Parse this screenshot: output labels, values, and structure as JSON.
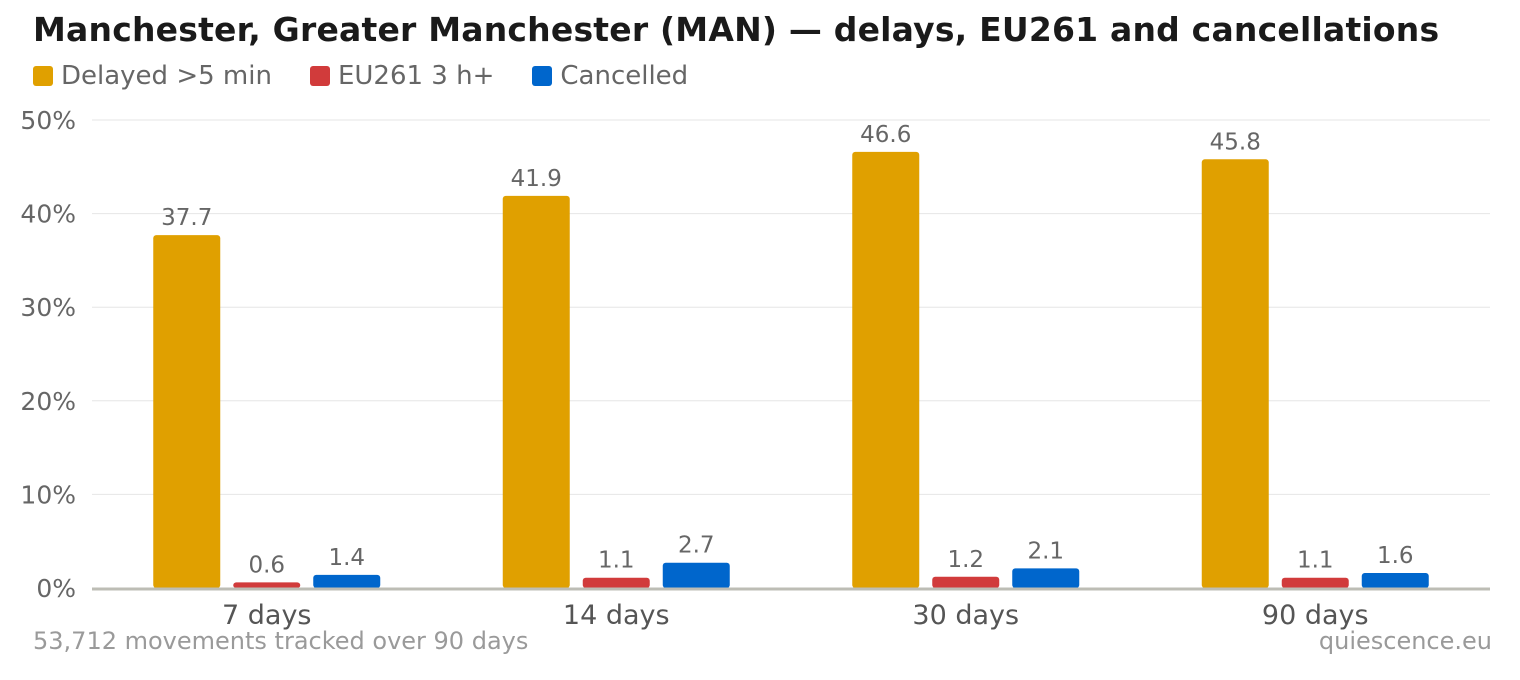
{
  "title": "Manchester, Greater Manchester (MAN) — delays, EU261 and cancellations",
  "footer": {
    "note": "53,712 movements tracked over 90 days",
    "source": "quiescence.eu"
  },
  "chart_data": {
    "type": "bar",
    "title": "Manchester, Greater Manchester (MAN) — delays, EU261 and cancellations",
    "categories": [
      "7 days",
      "14 days",
      "30 days",
      "90 days"
    ],
    "series": [
      {
        "name": "Delayed >5 min",
        "color": "#e0a000",
        "values": [
          37.7,
          41.9,
          46.6,
          45.8
        ]
      },
      {
        "name": "EU261 3 h+",
        "color": "#d13b3b",
        "values": [
          0.6,
          1.1,
          1.2,
          1.1
        ]
      },
      {
        "name": "Cancelled",
        "color": "#0066cc",
        "values": [
          1.4,
          2.7,
          2.1,
          1.6
        ]
      }
    ],
    "ylim": [
      0,
      50
    ],
    "yticks": [
      "0%",
      "10%",
      "20%",
      "30%",
      "40%",
      "50%"
    ],
    "ytick_values": [
      0,
      10,
      20,
      30,
      40,
      50
    ],
    "grid": true,
    "legend": "top-left",
    "xlabel": "",
    "ylabel": ""
  }
}
